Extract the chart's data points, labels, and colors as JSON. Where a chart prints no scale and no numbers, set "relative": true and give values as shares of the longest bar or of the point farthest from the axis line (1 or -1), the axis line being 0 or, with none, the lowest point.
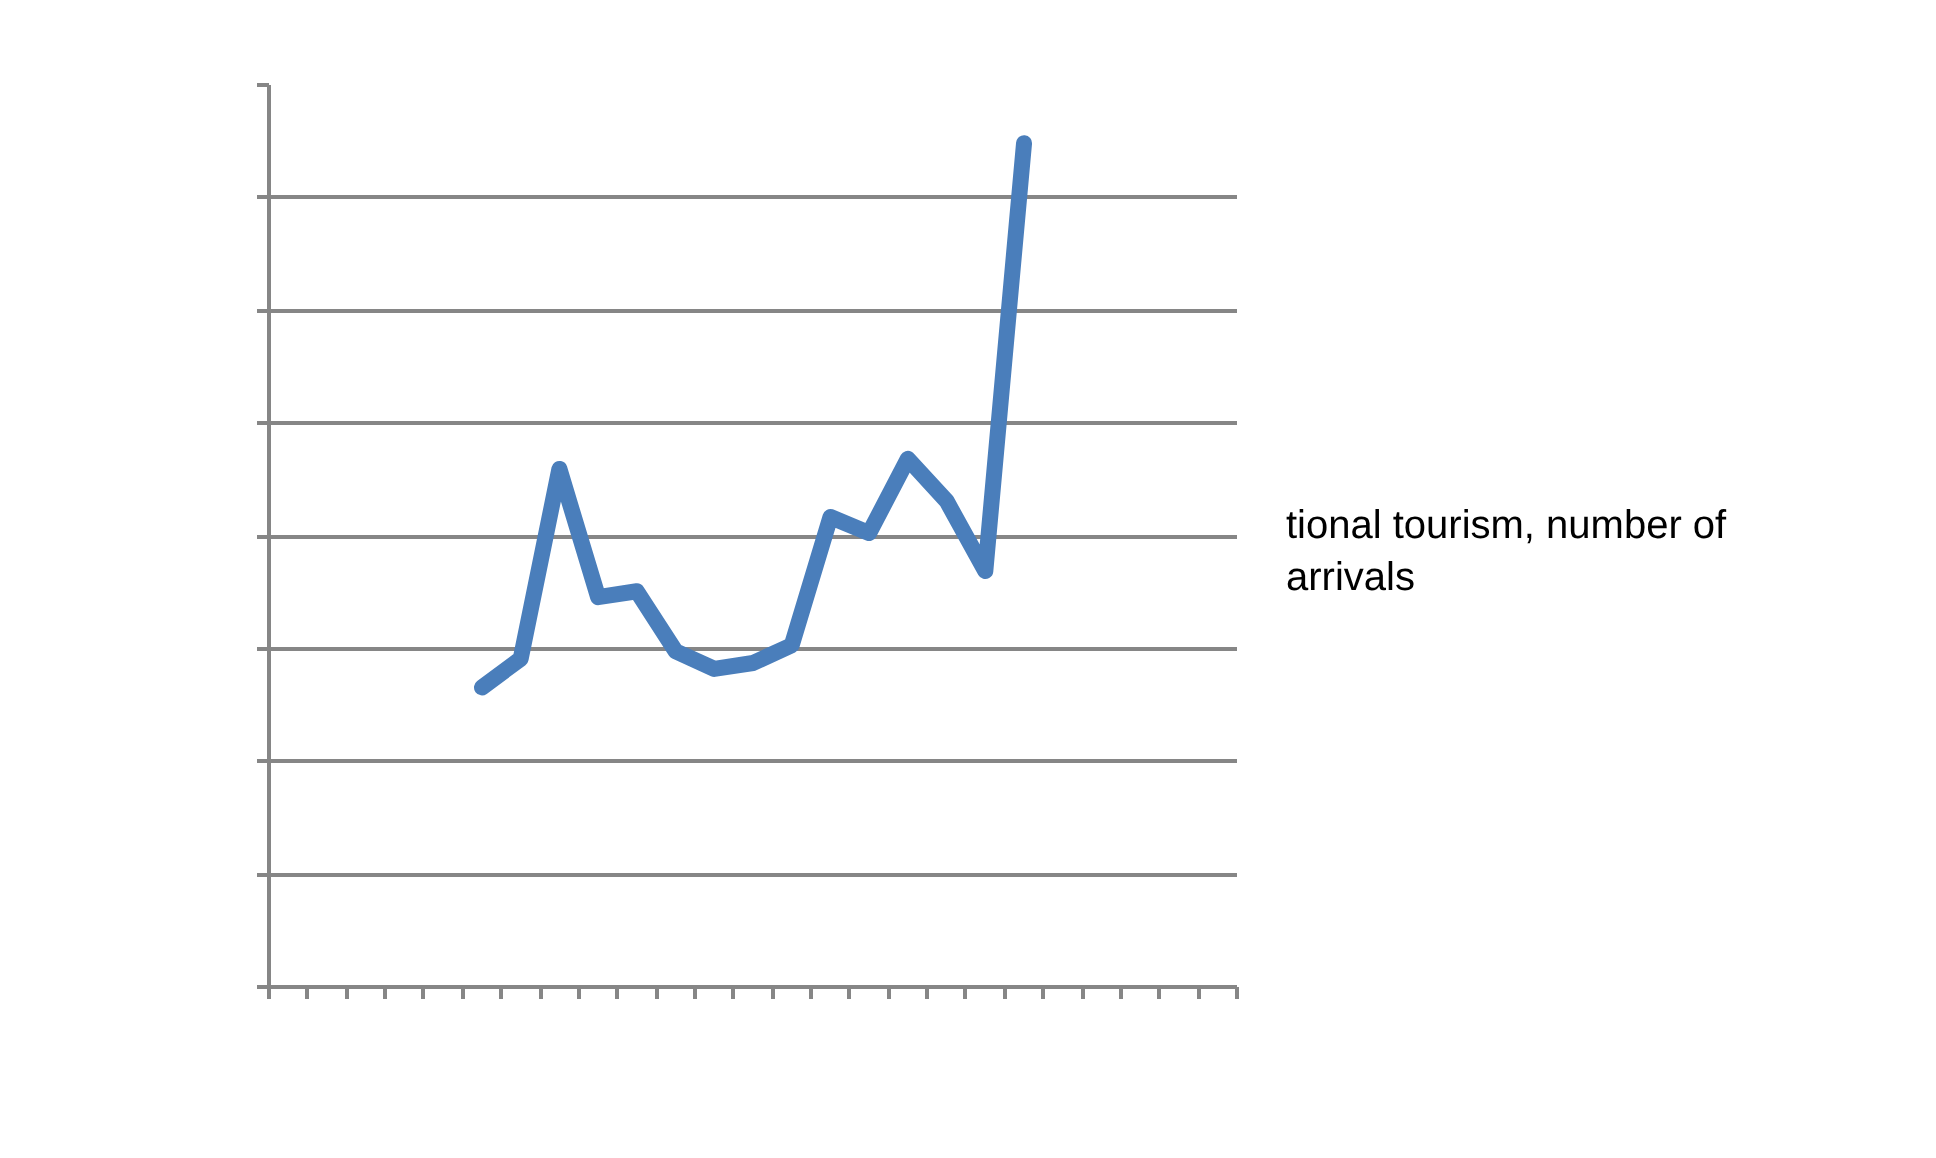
{
  "chart_data": {
    "type": "line",
    "relative": true,
    "categories": [
      null,
      null,
      null,
      null,
      null,
      null,
      null,
      null,
      null,
      null,
      null,
      null,
      null,
      null,
      null,
      null,
      null,
      null,
      null,
      null,
      null,
      null,
      null,
      null,
      null
    ],
    "series": [
      {
        "name": "tional tourism, number of arrivals",
        "color": "#4a7ebb",
        "values": [
          null,
          null,
          null,
          null,
          null,
          0.355,
          0.389,
          0.614,
          0.462,
          0.469,
          0.398,
          0.377,
          0.384,
          0.405,
          0.557,
          0.538,
          0.626,
          0.576,
          0.493,
          1,
          null,
          null,
          null,
          null,
          null
        ]
      }
    ],
    "grid": "y",
    "marker": "none",
    "line_style": "solid"
  }
}
